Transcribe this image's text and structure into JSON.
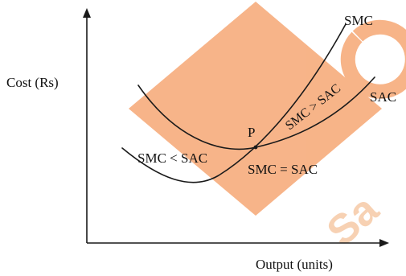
{
  "labels": {
    "y_axis": "Cost (Rs)",
    "x_axis": "Output (units)",
    "smc": "SMC",
    "sac": "SAC",
    "point": "P",
    "smc_lt_sac": "SMC < SAC",
    "smc_eq_sac": "SMC = SAC",
    "smc_gt_sac": "SMC > SAC"
  },
  "watermark": {
    "text": "Sa",
    "color": "#f5a46c"
  },
  "colors": {
    "line": "#1a1a1a",
    "background": "#ffffff"
  }
}
